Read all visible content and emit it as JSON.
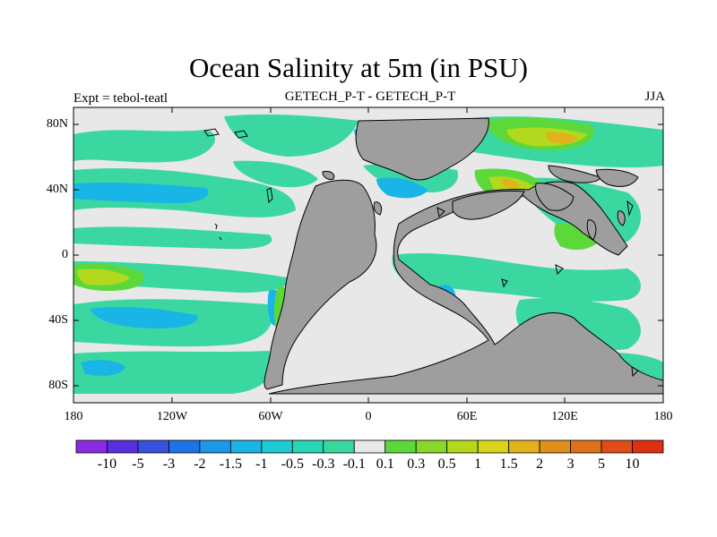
{
  "title": "Ocean Salinity at 5m (in PSU)",
  "left_label": "Expt = tebol-teatl",
  "center_label": "GETECH_P-T - GETECH_P-T",
  "right_label": "JJA",
  "axes": {
    "y_ticks": [
      "80N",
      "40N",
      "0",
      "40S",
      "80S"
    ],
    "x_ticks": [
      "180",
      "120W",
      "60W",
      "0",
      "60E",
      "120E",
      "180"
    ]
  },
  "colorbar": {
    "labels": [
      "-10",
      "-5",
      "-3",
      "-2",
      "-1.5",
      "-1",
      "-0.5",
      "-0.3",
      "-0.1",
      "0.1",
      "0.3",
      "0.5",
      "1",
      "1.5",
      "2",
      "3",
      "5",
      "10"
    ],
    "colors": [
      "#8a2be2",
      "#5a2fe0",
      "#3a50e0",
      "#1e73e6",
      "#1b98e8",
      "#18b5e6",
      "#1dcad0",
      "#26d6b4",
      "#3ad8a0",
      "#e8e8e8",
      "#5cd83a",
      "#88d82a",
      "#b4d81e",
      "#d8d41a",
      "#e2b21a",
      "#e0901a",
      "#e0701a",
      "#e04c1a",
      "#dc3010"
    ]
  },
  "colors": {
    "land": "#9e9e9e",
    "neutral": "#e8e8e8",
    "slightly_fresh": "#3ad8a0",
    "fresh": "#18b5e6",
    "salty": "#5cd83a",
    "very_salty": "#b4d81e"
  }
}
